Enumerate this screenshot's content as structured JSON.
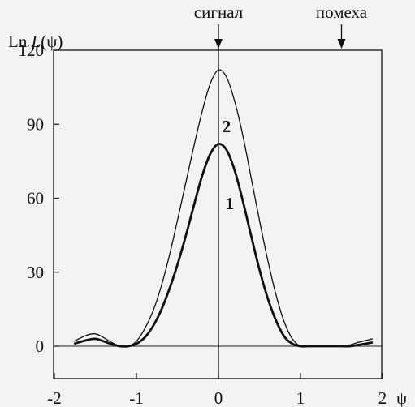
{
  "chart_data": {
    "type": "line",
    "ylabel_prefix": "Ln ",
    "ylabel_var": "L",
    "ylabel_suffix": "(ψ)",
    "xlabel": "ψ",
    "xlim": [
      -2,
      2
    ],
    "ylim": [
      0,
      120
    ],
    "x_ticks": [
      "-2",
      "-1",
      "0",
      "1",
      "2"
    ],
    "y_ticks": [
      "0",
      "30",
      "60",
      "90",
      "120"
    ],
    "grid": false,
    "annotations": [
      {
        "label": "сигнал",
        "x": 0
      },
      {
        "label": "помеха",
        "x": 1.5
      }
    ],
    "series": [
      {
        "name": "1",
        "x": [
          -1.76,
          -1.6,
          -1.5,
          -1.4,
          -1.3,
          -1.2,
          -1.1,
          -1.0,
          -0.9,
          -0.8,
          -0.7,
          -0.6,
          -0.5,
          -0.4,
          -0.3,
          -0.2,
          -0.1,
          0,
          0.1,
          0.2,
          0.3,
          0.4,
          0.5,
          0.6,
          0.7,
          0.8,
          0.9,
          1.0,
          1.1,
          1.2,
          1.3,
          1.4,
          1.5,
          1.6,
          1.7,
          1.88
        ],
        "values": [
          1.0,
          2.5,
          3.0,
          2.0,
          0.8,
          0.0,
          0.0,
          1.0,
          3.5,
          8.0,
          14.5,
          23.0,
          33.0,
          44.5,
          57.0,
          69.0,
          78.0,
          82.0,
          79.5,
          71.0,
          58.5,
          44.5,
          31.0,
          19.5,
          10.5,
          4.0,
          1.0,
          0.0,
          0.0,
          0.0,
          0.0,
          0.0,
          0.0,
          0.0,
          0.5,
          1.5
        ]
      },
      {
        "name": "2",
        "x": [
          -1.76,
          -1.6,
          -1.5,
          -1.4,
          -1.3,
          -1.2,
          -1.1,
          -1.0,
          -0.9,
          -0.8,
          -0.7,
          -0.6,
          -0.5,
          -0.4,
          -0.3,
          -0.2,
          -0.1,
          0,
          0.1,
          0.2,
          0.3,
          0.4,
          0.5,
          0.6,
          0.7,
          0.8,
          0.9,
          1.0,
          1.1,
          1.2,
          1.3,
          1.4,
          1.5,
          1.6,
          1.7,
          1.88
        ],
        "values": [
          2.0,
          4.5,
          5.0,
          3.5,
          1.5,
          0.0,
          0.0,
          2.0,
          7.0,
          14.0,
          24.0,
          36.5,
          51.0,
          66.0,
          81.0,
          95.0,
          106.5,
          112.0,
          109.0,
          99.0,
          85.0,
          68.0,
          51.0,
          35.0,
          21.0,
          10.0,
          3.0,
          0.0,
          0.0,
          0.0,
          0.0,
          0.0,
          0.0,
          0.5,
          1.5,
          3.0
        ]
      }
    ]
  }
}
